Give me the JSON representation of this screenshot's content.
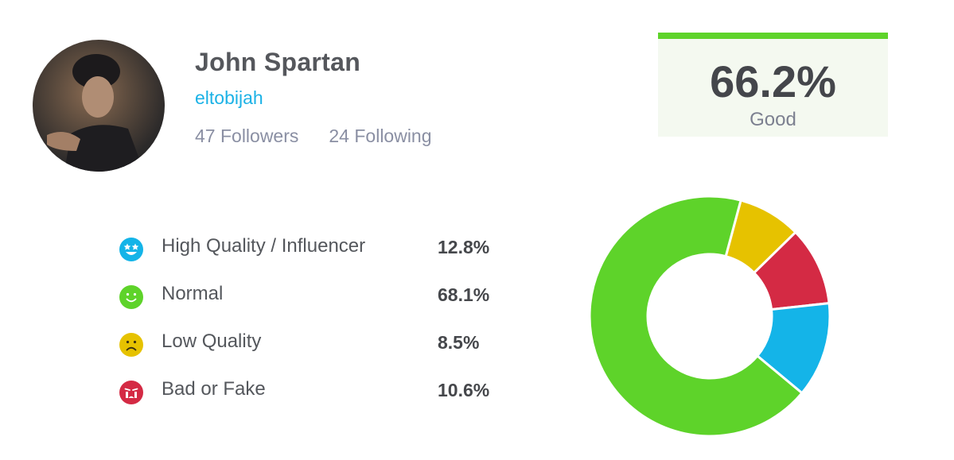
{
  "profile": {
    "name": "John Spartan",
    "handle": "eltobijah",
    "followers_label": "47 Followers",
    "following_label": "24 Following"
  },
  "score": {
    "value": "66.2%",
    "label": "Good",
    "accent_color": "#5ed32a"
  },
  "legend": [
    {
      "label": "High Quality / Influencer",
      "value": "12.8%",
      "icon": "star-eyes-face-icon",
      "color": "#14b4e8"
    },
    {
      "label": "Normal",
      "value": "68.1%",
      "icon": "smile-face-icon",
      "color": "#5ed32a"
    },
    {
      "label": "Low Quality",
      "value": "8.5%",
      "icon": "frown-face-icon",
      "color": "#e6c200"
    },
    {
      "label": "Bad or Fake",
      "value": "10.6%",
      "icon": "crying-face-icon",
      "color": "#d42a44"
    }
  ],
  "chart_data": {
    "type": "pie",
    "donut": true,
    "categories": [
      "High Quality / Influencer",
      "Normal",
      "Low Quality",
      "Bad or Fake"
    ],
    "values": [
      12.8,
      68.1,
      8.5,
      10.6
    ],
    "colors": [
      "#14b4e8",
      "#5ed32a",
      "#e6c200",
      "#d42a44"
    ],
    "order_clockwise_from_top": [
      "Low Quality",
      "Bad or Fake",
      "High Quality / Influencer",
      "Normal"
    ],
    "title": ""
  }
}
